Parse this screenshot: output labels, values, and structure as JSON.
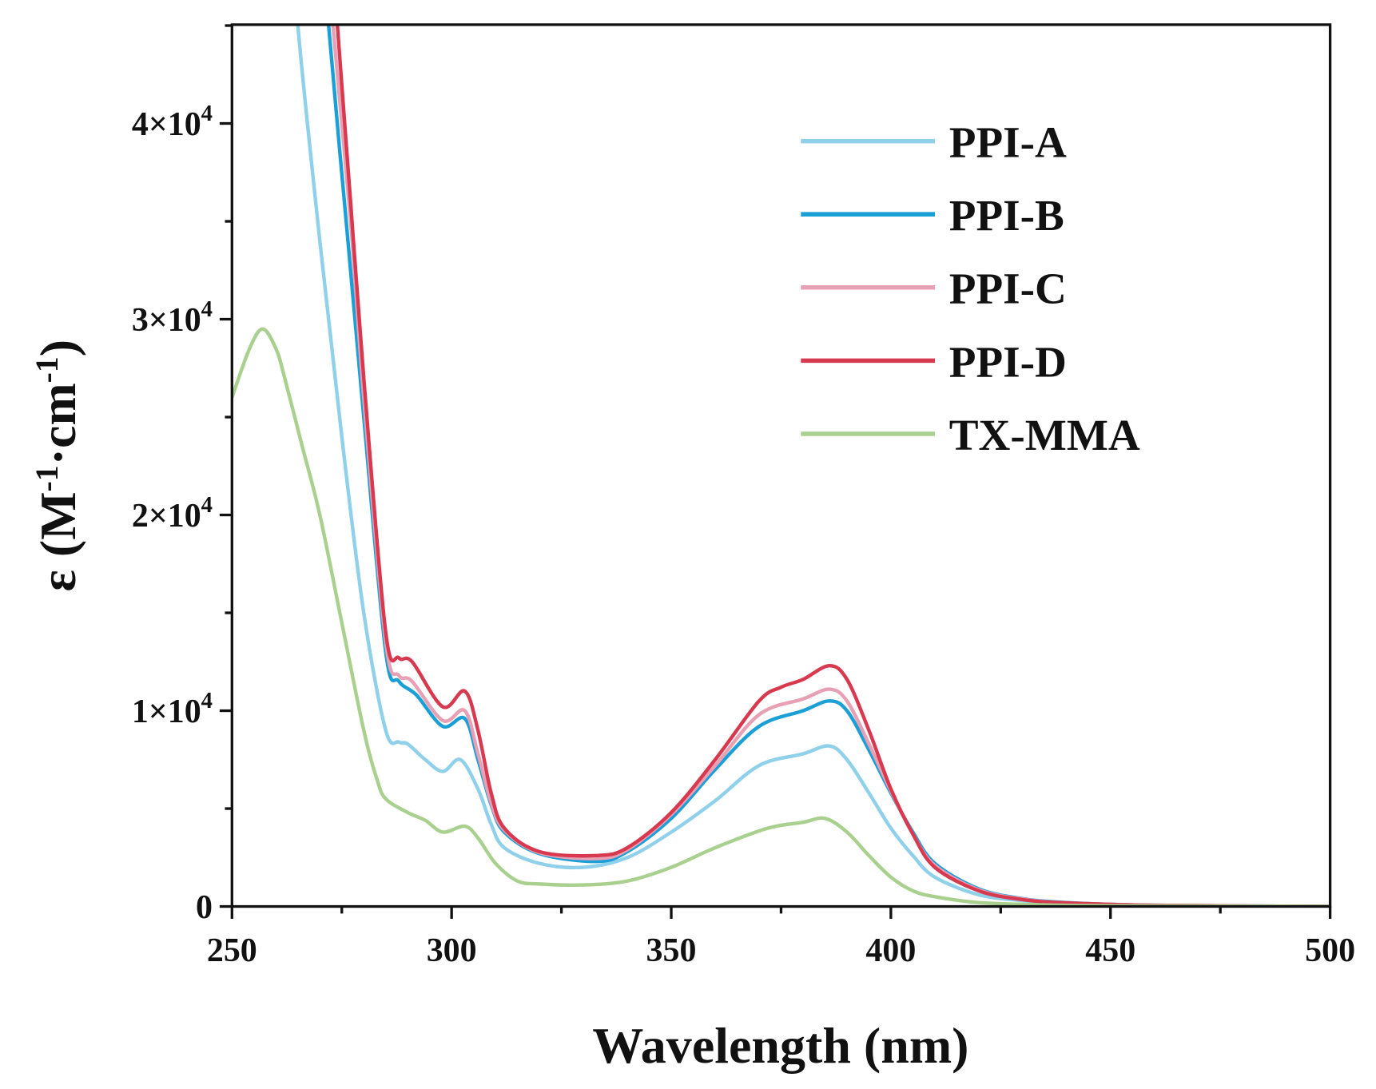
{
  "chart_data": {
    "type": "line",
    "title": "",
    "xlabel": "Wavelength (nm)",
    "ylabel_main": "ε (M",
    "ylabel_sup1": "-1",
    "ylabel_mid": "·cm",
    "ylabel_sup2": "-1",
    "ylabel_end": ")",
    "xlim": [
      250,
      500
    ],
    "ylim": [
      0,
      45000
    ],
    "xticks": [
      250,
      300,
      350,
      400,
      450,
      500
    ],
    "xtick_labels": [
      "250",
      "300",
      "350",
      "400",
      "450",
      "500"
    ],
    "yticks": [
      0,
      10000,
      20000,
      30000,
      40000
    ],
    "ytick_labels": [
      {
        "base": "0",
        "exp": ""
      },
      {
        "base": "1×10",
        "exp": "4"
      },
      {
        "base": "2×10",
        "exp": "4"
      },
      {
        "base": "3×10",
        "exp": "4"
      },
      {
        "base": "4×10",
        "exp": "4"
      }
    ],
    "grid": false,
    "legend_position": "top-right",
    "series": [
      {
        "name": "PPI-A",
        "color": "#8fd0ea",
        "x": [
          263,
          265,
          270,
          275,
          280,
          285,
          288,
          290,
          294,
          298,
          302,
          306,
          309,
          312,
          320,
          330,
          340,
          350,
          360,
          370,
          380,
          386,
          390,
          395,
          400,
          405,
          410,
          420,
          430,
          440,
          460,
          500
        ],
        "y": [
          52000,
          45000,
          34000,
          24000,
          15000,
          9000,
          8400,
          8300,
          7500,
          6900,
          7500,
          6000,
          4200,
          3000,
          2200,
          2000,
          2500,
          3800,
          5400,
          7200,
          7800,
          8200,
          7500,
          5800,
          4000,
          2600,
          1500,
          600,
          300,
          150,
          50,
          0
        ]
      },
      {
        "name": "PPI-B",
        "color": "#1a9fd6",
        "x": [
          270,
          272,
          276,
          280,
          285,
          288,
          292,
          298,
          303,
          306,
          309,
          312,
          320,
          333,
          340,
          350,
          360,
          370,
          380,
          386,
          390,
          395,
          400,
          405,
          410,
          420,
          430,
          440,
          460,
          500
        ],
        "y": [
          52000,
          45000,
          35000,
          25000,
          13000,
          11500,
          10800,
          9200,
          9600,
          7500,
          5200,
          3800,
          2700,
          2300,
          2800,
          4500,
          7000,
          9200,
          10000,
          10500,
          10000,
          8000,
          5800,
          3800,
          2200,
          900,
          400,
          200,
          60,
          0
        ]
      },
      {
        "name": "PPI-C",
        "color": "#e8a0b4",
        "x": [
          271,
          273,
          277,
          280,
          285,
          288,
          291,
          298,
          303,
          306,
          309,
          312,
          320,
          333,
          340,
          350,
          360,
          370,
          380,
          386,
          390,
          395,
          400,
          405,
          410,
          420,
          430,
          440,
          460,
          500
        ],
        "y": [
          52000,
          45000,
          35000,
          26000,
          13500,
          11800,
          11500,
          9500,
          10000,
          7800,
          5300,
          3900,
          2750,
          2450,
          2900,
          4700,
          7200,
          9800,
          10600,
          11100,
          10500,
          8300,
          5900,
          3700,
          2100,
          850,
          380,
          180,
          60,
          0
        ]
      },
      {
        "name": "PPI-D",
        "color": "#d9394f",
        "x": [
          272,
          274,
          277,
          280,
          285,
          288,
          291,
          298,
          303,
          306,
          309,
          312,
          320,
          333,
          340,
          350,
          360,
          370,
          375,
          380,
          386,
          390,
          395,
          400,
          405,
          410,
          420,
          430,
          440,
          460,
          500
        ],
        "y": [
          52000,
          45000,
          36000,
          27000,
          14000,
          12700,
          12500,
          10200,
          11000,
          9000,
          5800,
          4000,
          2800,
          2600,
          3000,
          4800,
          7500,
          10500,
          11200,
          11600,
          12300,
          11600,
          9000,
          6000,
          3700,
          2000,
          800,
          350,
          180,
          60,
          0
        ]
      },
      {
        "name": "TX-MMA",
        "color": "#a9d08e",
        "x": [
          250,
          254,
          257,
          260,
          262,
          266,
          270,
          275,
          280,
          283,
          285,
          290,
          294,
          298,
          303,
          306,
          310,
          315,
          320,
          330,
          340,
          350,
          360,
          372,
          380,
          385,
          390,
          395,
          400,
          405,
          410,
          420,
          435,
          450,
          500
        ],
        "y": [
          26000,
          28500,
          29500,
          28500,
          27000,
          23500,
          20000,
          14500,
          9000,
          6500,
          5500,
          4800,
          4400,
          3800,
          4100,
          3500,
          2200,
          1300,
          1150,
          1100,
          1300,
          2000,
          3000,
          4000,
          4300,
          4500,
          3800,
          2600,
          1500,
          800,
          500,
          200,
          80,
          40,
          0
        ]
      }
    ]
  }
}
